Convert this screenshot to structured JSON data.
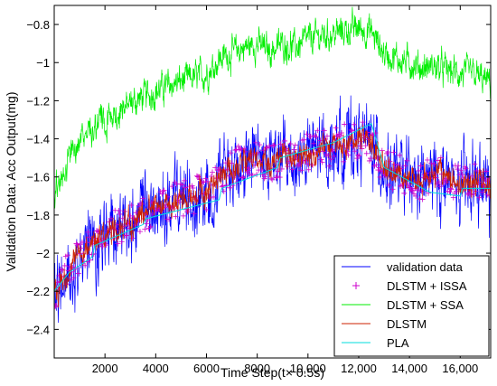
{
  "chart_data": {
    "type": "line",
    "title": "",
    "xlabel": "Time Step(t× 0.5s)",
    "ylabel": "Validation Data: Acc Output(mg)",
    "xlim": [
      0,
      17200
    ],
    "ylim": [
      -2.55,
      -0.7
    ],
    "x_ticks": [
      2000,
      4000,
      6000,
      8000,
      10000,
      12000,
      14000,
      16000
    ],
    "x_tick_labels": [
      "2000",
      "4000",
      "6000",
      "8000",
      "10,000",
      "12,000",
      "14,000",
      "16,000"
    ],
    "y_ticks": [
      -2.4,
      -2.2,
      -2.0,
      -1.8,
      -1.6,
      -1.4,
      -1.2,
      -1.0,
      -0.8
    ],
    "y_tick_labels": [
      "−2.4",
      "−2.2",
      "−2",
      "−1.8",
      "−1.6",
      "−1.4",
      "−1.2",
      "−1",
      "−0.8"
    ],
    "grid": false,
    "legend_position": "bottom-right",
    "series": [
      {
        "name": "validation data",
        "color": "#0000ff",
        "style": "line",
        "x": [
          0,
          500,
          1000,
          1500,
          2000,
          2500,
          3000,
          3500,
          4000,
          4500,
          5000,
          5500,
          6000,
          6500,
          7000,
          7500,
          8000,
          8500,
          9000,
          9500,
          10000,
          10500,
          11000,
          11500,
          12000,
          12500,
          13000,
          13500,
          14000,
          14500,
          15000,
          15500,
          16000,
          16500,
          17000
        ],
        "values": [
          -2.25,
          -2.12,
          -2.02,
          -1.97,
          -1.92,
          -1.88,
          -1.86,
          -1.82,
          -1.78,
          -1.76,
          -1.73,
          -1.72,
          -1.7,
          -1.6,
          -1.55,
          -1.52,
          -1.5,
          -1.55,
          -1.5,
          -1.52,
          -1.48,
          -1.46,
          -1.45,
          -1.43,
          -1.4,
          -1.42,
          -1.55,
          -1.6,
          -1.62,
          -1.64,
          -1.6,
          -1.62,
          -1.66,
          -1.63,
          -1.65
        ],
        "noise_amplitude": 0.14
      },
      {
        "name": "DLSTM + ISSA",
        "color": "#cc00cc",
        "style": "markers",
        "marker": "+",
        "x": [
          0,
          500,
          1000,
          1500,
          2000,
          2500,
          3000,
          3500,
          4000,
          4500,
          5000,
          5500,
          6000,
          6500,
          7000,
          7500,
          8000,
          8500,
          9000,
          9500,
          10000,
          10500,
          11000,
          11500,
          12000,
          12500,
          13000,
          13500,
          14000,
          14500,
          15000,
          15500,
          16000,
          16500,
          17000
        ],
        "values": [
          -2.22,
          -2.1,
          -2.0,
          -1.95,
          -1.9,
          -1.86,
          -1.84,
          -1.8,
          -1.76,
          -1.74,
          -1.71,
          -1.7,
          -1.68,
          -1.6,
          -1.55,
          -1.52,
          -1.5,
          -1.54,
          -1.5,
          -1.51,
          -1.47,
          -1.45,
          -1.44,
          -1.42,
          -1.4,
          -1.42,
          -1.54,
          -1.58,
          -1.6,
          -1.62,
          -1.58,
          -1.6,
          -1.64,
          -1.62,
          -1.63
        ],
        "noise_amplitude": 0.1
      },
      {
        "name": "DLSTM + SSA",
        "color": "#00ee00",
        "style": "line",
        "x": [
          0,
          500,
          1000,
          1500,
          2000,
          2500,
          3000,
          3500,
          4000,
          4500,
          5000,
          5500,
          6000,
          6500,
          7000,
          7500,
          8000,
          8500,
          9000,
          9500,
          10000,
          10500,
          11000,
          11500,
          12000,
          12500,
          13000,
          13500,
          14000,
          14500,
          15000,
          15500,
          16000,
          16500,
          17000
        ],
        "values": [
          -1.68,
          -1.52,
          -1.4,
          -1.35,
          -1.3,
          -1.26,
          -1.22,
          -1.18,
          -1.15,
          -1.12,
          -1.1,
          -1.08,
          -1.06,
          -0.98,
          -0.95,
          -0.92,
          -0.9,
          -0.94,
          -0.9,
          -0.92,
          -0.88,
          -0.86,
          -0.85,
          -0.83,
          -0.82,
          -0.84,
          -0.95,
          -0.98,
          -1.0,
          -1.03,
          -1.02,
          -1.04,
          -1.06,
          -1.06,
          -1.1
        ],
        "noise_amplitude": 0.06
      },
      {
        "name": "DLSTM",
        "color": "#cc2200",
        "style": "line",
        "x": [
          0,
          500,
          1000,
          1500,
          2000,
          2500,
          3000,
          3500,
          4000,
          4500,
          5000,
          5500,
          6000,
          6500,
          7000,
          7500,
          8000,
          8500,
          9000,
          9500,
          10000,
          10500,
          11000,
          11500,
          12000,
          12500,
          13000,
          13500,
          14000,
          14500,
          15000,
          15500,
          16000,
          16500,
          17000
        ],
        "values": [
          -2.22,
          -2.1,
          -2.0,
          -1.95,
          -1.9,
          -1.86,
          -1.84,
          -1.8,
          -1.76,
          -1.74,
          -1.71,
          -1.7,
          -1.68,
          -1.6,
          -1.55,
          -1.52,
          -1.5,
          -1.54,
          -1.5,
          -1.51,
          -1.47,
          -1.45,
          -1.44,
          -1.42,
          -1.4,
          -1.42,
          -1.54,
          -1.58,
          -1.6,
          -1.62,
          -1.58,
          -1.6,
          -1.64,
          -1.62,
          -1.63
        ],
        "noise_amplitude": 0.05
      },
      {
        "name": "PLA",
        "color": "#00dddd",
        "style": "line",
        "x": [
          0,
          600,
          1500,
          1600,
          3500,
          3600,
          6500,
          6600,
          8800,
          8900,
          11000,
          12500,
          13000,
          14800,
          16000,
          16100,
          17200
        ],
        "values": [
          -2.2,
          -2.1,
          -2.02,
          -1.96,
          -1.85,
          -1.82,
          -1.72,
          -1.66,
          -1.55,
          -1.5,
          -1.42,
          -1.32,
          -1.55,
          -1.68,
          -1.7,
          -1.66,
          -1.66
        ]
      }
    ]
  }
}
